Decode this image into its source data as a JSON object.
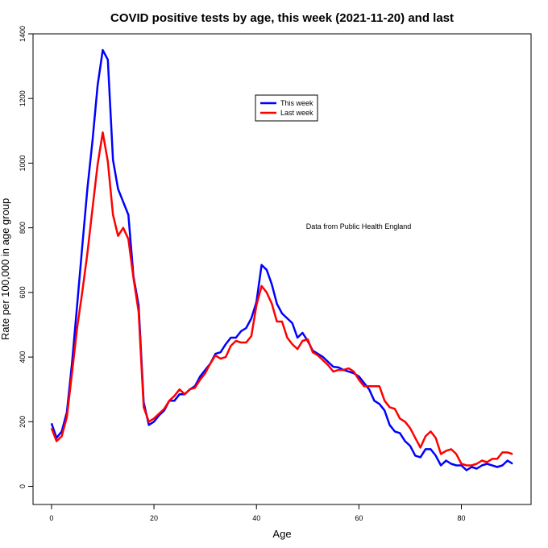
{
  "chart_data": {
    "type": "line",
    "title": "COVID positive tests by age, this week (2021-11-20) and last",
    "xlabel": "Age",
    "ylabel": "Rate per 100,000 in age group",
    "annotation": "Data from Public Health England",
    "xlim": [
      -3.6,
      93.6
    ],
    "ylim": [
      -56,
      1400
    ],
    "xticks": [
      0,
      20,
      40,
      60,
      80
    ],
    "yticks": [
      0,
      200,
      400,
      600,
      800,
      1000,
      1200,
      1400
    ],
    "grid": false,
    "legend_position": "top-center",
    "x": [
      0,
      1,
      2,
      3,
      4,
      5,
      6,
      7,
      8,
      9,
      10,
      11,
      12,
      13,
      14,
      15,
      16,
      17,
      18,
      19,
      20,
      21,
      22,
      23,
      24,
      25,
      26,
      27,
      28,
      29,
      30,
      31,
      32,
      33,
      34,
      35,
      36,
      37,
      38,
      39,
      40,
      41,
      42,
      43,
      44,
      45,
      46,
      47,
      48,
      49,
      50,
      51,
      52,
      53,
      54,
      55,
      56,
      57,
      58,
      59,
      60,
      61,
      62,
      63,
      64,
      65,
      66,
      67,
      68,
      69,
      70,
      71,
      72,
      73,
      74,
      75,
      76,
      77,
      78,
      79,
      80,
      81,
      82,
      83,
      84,
      85,
      86,
      87,
      88,
      89,
      90
    ],
    "series": [
      {
        "name": "This week",
        "color": "#0000ff",
        "values": [
          195,
          150,
          170,
          230,
          380,
          560,
          740,
          920,
          1070,
          1240,
          1350,
          1320,
          1010,
          920,
          880,
          840,
          650,
          560,
          260,
          190,
          200,
          220,
          235,
          265,
          265,
          285,
          285,
          300,
          310,
          340,
          360,
          380,
          410,
          415,
          440,
          460,
          460,
          480,
          490,
          520,
          570,
          685,
          670,
          625,
          565,
          535,
          520,
          505,
          460,
          475,
          450,
          420,
          410,
          400,
          385,
          370,
          368,
          360,
          355,
          350,
          340,
          320,
          300,
          265,
          255,
          235,
          190,
          170,
          165,
          140,
          125,
          95,
          90,
          115,
          115,
          95,
          65,
          80,
          70,
          65,
          65,
          50,
          60,
          55,
          65,
          70,
          65,
          60,
          65,
          80,
          70
        ]
      },
      {
        "name": "Last week",
        "color": "#ff0000",
        "values": [
          180,
          140,
          155,
          215,
          350,
          490,
          600,
          720,
          860,
          995,
          1095,
          1005,
          840,
          775,
          800,
          765,
          645,
          540,
          245,
          200,
          210,
          225,
          240,
          265,
          280,
          300,
          285,
          300,
          305,
          330,
          350,
          380,
          405,
          395,
          400,
          435,
          450,
          445,
          445,
          465,
          560,
          620,
          600,
          565,
          510,
          510,
          460,
          440,
          425,
          450,
          455,
          415,
          405,
          390,
          375,
          355,
          360,
          360,
          365,
          355,
          330,
          310,
          310,
          310,
          310,
          265,
          245,
          240,
          210,
          200,
          180,
          150,
          120,
          155,
          170,
          150,
          100,
          110,
          115,
          100,
          70,
          65,
          65,
          70,
          80,
          75,
          85,
          85,
          105,
          105,
          100
        ]
      }
    ]
  }
}
